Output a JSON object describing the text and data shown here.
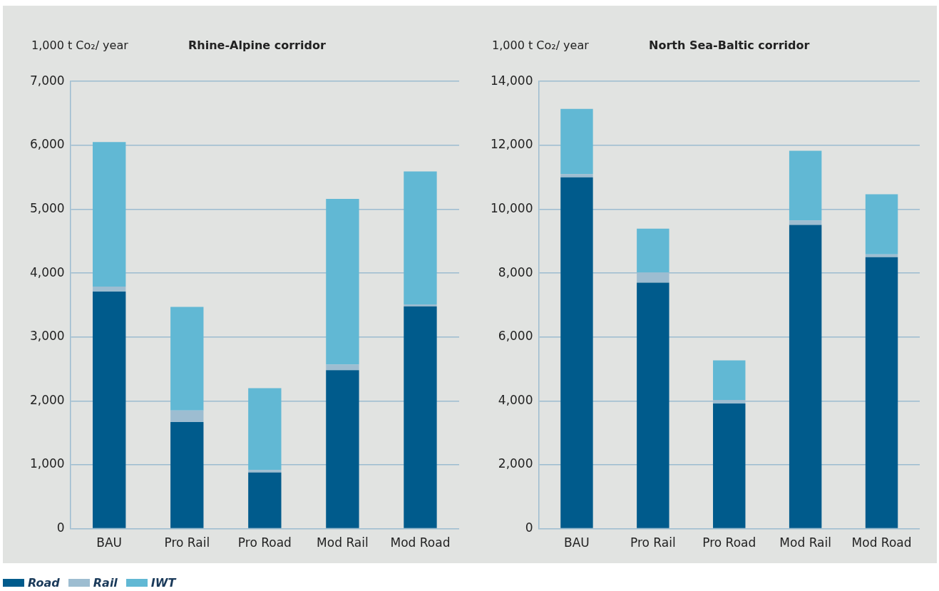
{
  "chart_data": [
    {
      "type": "bar",
      "title": "Rhine-Alpine corridor",
      "ylabel": "1,000 t Co₂/ year",
      "stacked": true,
      "grid": "y",
      "legend": "bottom left",
      "categories": [
        "BAU",
        "Pro Rail",
        "Pro Road",
        "Mod Rail",
        "Mod Road"
      ],
      "ylim": [
        0,
        7000
      ],
      "yticks": [
        0,
        {
          "value": 1000,
          "label": "1,000"
        },
        {
          "value": 2000,
          "label": "2,000"
        },
        {
          "value": 3000,
          "label": "3,000"
        },
        {
          "value": 4000,
          "label": "4,000"
        },
        {
          "value": 5000,
          "label": "5,000"
        },
        {
          "value": 6000,
          "label": "6,000"
        },
        {
          "value": 7000,
          "label": "7,000"
        }
      ],
      "series": [
        {
          "name": "Road",
          "color": "#005b8c",
          "values": [
            3710,
            1670,
            880,
            2480,
            3480
          ]
        },
        {
          "name": "Rail",
          "color": "#9dbdd1",
          "values": [
            80,
            180,
            40,
            90,
            30
          ]
        },
        {
          "name": "IWT",
          "color": "#61b8d4",
          "values": [
            2260,
            1620,
            1280,
            2590,
            2080
          ]
        }
      ]
    },
    {
      "type": "bar",
      "title": "North Sea-Baltic corridor",
      "ylabel": "1,000 t Co₂/ year",
      "stacked": true,
      "grid": "y",
      "categories": [
        "BAU",
        "Pro Rail",
        "Pro Road",
        "Mod Rail",
        "Mod Road"
      ],
      "ylim": [
        0,
        14000
      ],
      "yticks": [
        0,
        {
          "value": 2000,
          "label": "2,000"
        },
        {
          "value": 4000,
          "label": "4,000"
        },
        {
          "value": 6000,
          "label": "6,000"
        },
        {
          "value": 8000,
          "label": "8,000"
        },
        {
          "value": 10000,
          "label": "10,000"
        },
        {
          "value": 12000,
          "label": "12,000"
        },
        {
          "value": 14000,
          "label": "14,000"
        }
      ],
      "series": [
        {
          "color": "#005b8c",
          "values": [
            11000,
            7700,
            3920,
            9510,
            8500
          ]
        },
        {
          "color": "#9dbdd1",
          "values": [
            100,
            320,
            110,
            140,
            90
          ]
        },
        {
          "color": "#61b8d4",
          "values": [
            2040,
            1370,
            1240,
            2180,
            1880
          ]
        }
      ]
    }
  ]
}
